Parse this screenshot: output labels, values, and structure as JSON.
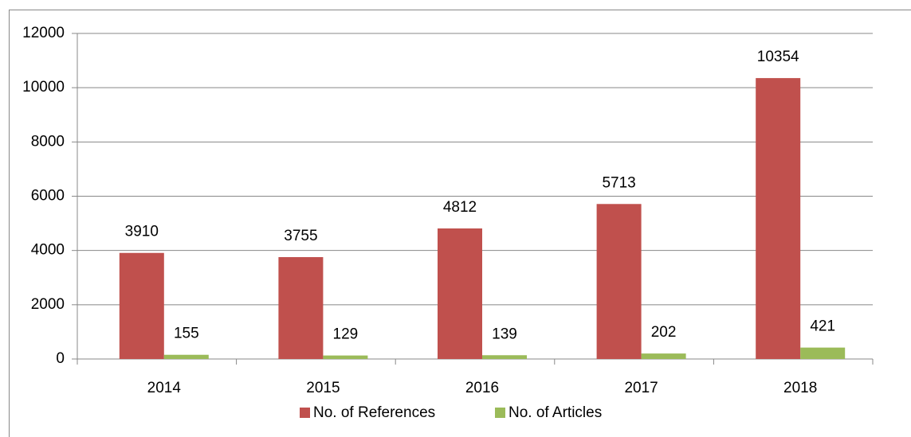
{
  "chart_data": {
    "type": "bar",
    "categories": [
      "2014",
      "2015",
      "2016",
      "2017",
      "2018"
    ],
    "series": [
      {
        "name": "No. of References",
        "color": "#c0504d",
        "values": [
          3910,
          3755,
          4812,
          5713,
          10354
        ]
      },
      {
        "name": "No. of Articles",
        "color": "#9bbb59",
        "values": [
          155,
          129,
          139,
          202,
          421
        ]
      }
    ],
    "ylim": [
      0,
      12000
    ],
    "yticks": [
      0,
      2000,
      4000,
      6000,
      8000,
      10000,
      12000
    ],
    "grid": true,
    "legend": "bottom"
  }
}
